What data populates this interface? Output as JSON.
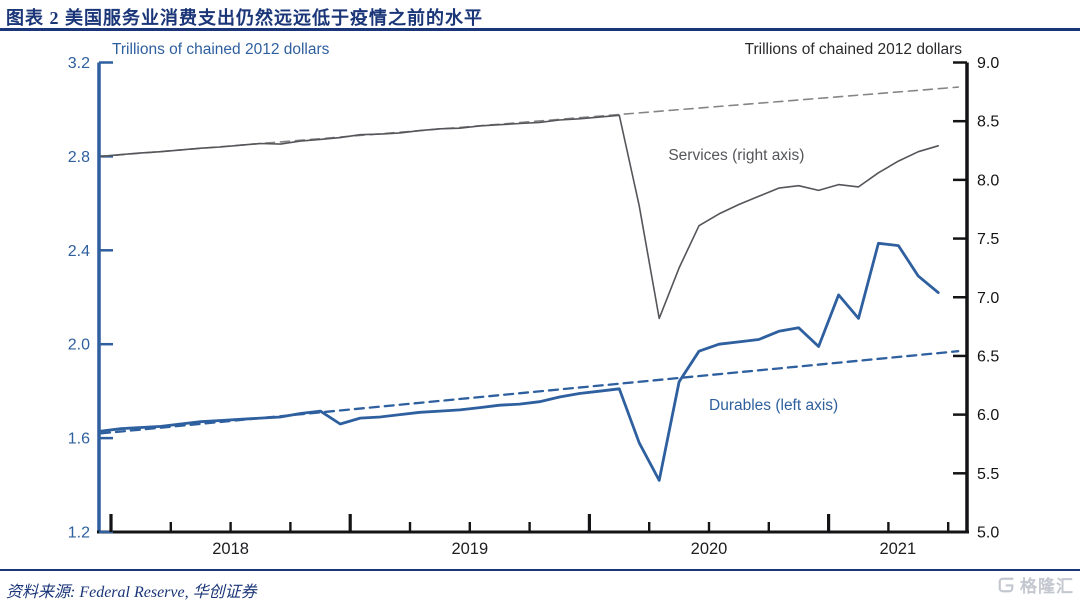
{
  "header": {
    "title": "图表 2 美国服务业消费支出仍然远远低于疫情之前的水平"
  },
  "footer": {
    "source": "资料来源: Federal Reserve, 华创证券",
    "logo_text": "格隆汇"
  },
  "colors": {
    "accent_navy": "#1a3578",
    "durables_blue": "#2e5f9e",
    "services_gray": "#55565a",
    "trend_gray": "#858585",
    "axis_black": "#141416",
    "logo_gray": "#c3c7cf"
  },
  "chart_data": {
    "type": "line",
    "left_axis": {
      "label": "Trillions of chained 2012 dollars",
      "min": 1.2,
      "max": 3.2,
      "ticks": [
        3.2,
        2.8,
        2.4,
        2.0,
        1.6,
        1.2
      ],
      "color": "#2e5f9e"
    },
    "right_axis": {
      "label": "Trillions of chained 2012 dollars",
      "min": 5.0,
      "max": 9.0,
      "ticks": [
        9.0,
        8.5,
        8.0,
        7.5,
        7.0,
        6.5,
        6.0,
        5.5,
        5.0
      ],
      "color": "#141416"
    },
    "x_axis": {
      "range": [
        2017.95,
        2021.583
      ],
      "year_ticks": [
        2018,
        2019,
        2020,
        2021
      ],
      "quarter_ticks": [
        2018.25,
        2018.5,
        2018.75,
        2019.25,
        2019.5,
        2019.75,
        2020.25,
        2020.5,
        2020.75,
        2021.25,
        2021.5
      ],
      "year_labels": [
        "2018",
        "2019",
        "2020",
        "2021"
      ]
    },
    "months": [
      "2017-12",
      "2018-01",
      "2018-02",
      "2018-03",
      "2018-04",
      "2018-05",
      "2018-06",
      "2018-07",
      "2018-08",
      "2018-09",
      "2018-10",
      "2018-11",
      "2018-12",
      "2019-01",
      "2019-02",
      "2019-03",
      "2019-04",
      "2019-05",
      "2019-06",
      "2019-07",
      "2019-08",
      "2019-09",
      "2019-10",
      "2019-11",
      "2019-12",
      "2020-01",
      "2020-02",
      "2020-03",
      "2020-04",
      "2020-05",
      "2020-06",
      "2020-07",
      "2020-08",
      "2020-09",
      "2020-10",
      "2020-11",
      "2020-12",
      "2021-01",
      "2021-02",
      "2021-03",
      "2021-04",
      "2021-05",
      "2021-06"
    ],
    "series": [
      {
        "name": "Services trend",
        "axis": "right",
        "style": "dashed",
        "color": "#858585",
        "width": 1.6,
        "x_months": [
          "2017-12",
          "2021-07"
        ],
        "values": [
          8.2,
          8.79
        ]
      },
      {
        "name": "Services",
        "axis": "right",
        "style": "solid",
        "color": "#55565a",
        "width": 1.6,
        "values": [
          8.2,
          8.215,
          8.23,
          8.24,
          8.255,
          8.27,
          8.28,
          8.295,
          8.31,
          8.305,
          8.33,
          8.345,
          8.36,
          8.385,
          8.39,
          8.4,
          8.42,
          8.435,
          8.44,
          8.46,
          8.47,
          8.48,
          8.49,
          8.51,
          8.52,
          8.535,
          8.55,
          7.78,
          6.82,
          7.25,
          7.61,
          7.71,
          7.79,
          7.86,
          7.93,
          7.95,
          7.91,
          7.96,
          7.94,
          8.06,
          8.16,
          8.24,
          8.29
        ]
      },
      {
        "name": "Durables trend",
        "axis": "left",
        "style": "dashed",
        "color": "#2e5f9e",
        "width": 2.3,
        "x_months": [
          "2017-12",
          "2021-07"
        ],
        "values": [
          1.62,
          1.97
        ]
      },
      {
        "name": "Durables",
        "axis": "left",
        "style": "solid",
        "color": "#2e5f9e",
        "width": 2.8,
        "values": [
          1.63,
          1.64,
          1.645,
          1.65,
          1.66,
          1.67,
          1.675,
          1.68,
          1.685,
          1.69,
          1.705,
          1.715,
          1.66,
          1.685,
          1.69,
          1.7,
          1.71,
          1.715,
          1.72,
          1.73,
          1.74,
          1.745,
          1.755,
          1.775,
          1.79,
          1.8,
          1.81,
          1.58,
          1.42,
          1.84,
          1.97,
          2.0,
          2.01,
          2.02,
          2.055,
          2.07,
          1.99,
          2.21,
          2.11,
          2.43,
          2.42,
          2.29,
          2.22
        ]
      }
    ],
    "annotations": [
      {
        "text": "Services (right axis)",
        "axis": "right",
        "x": 2020.33,
        "y": 8.17,
        "color": "#55565a"
      },
      {
        "text": "Durables (left axis)",
        "axis": "left",
        "x": 2020.5,
        "y": 1.719,
        "color": "#2e5f9e"
      }
    ],
    "legend": "none",
    "grid": false
  }
}
